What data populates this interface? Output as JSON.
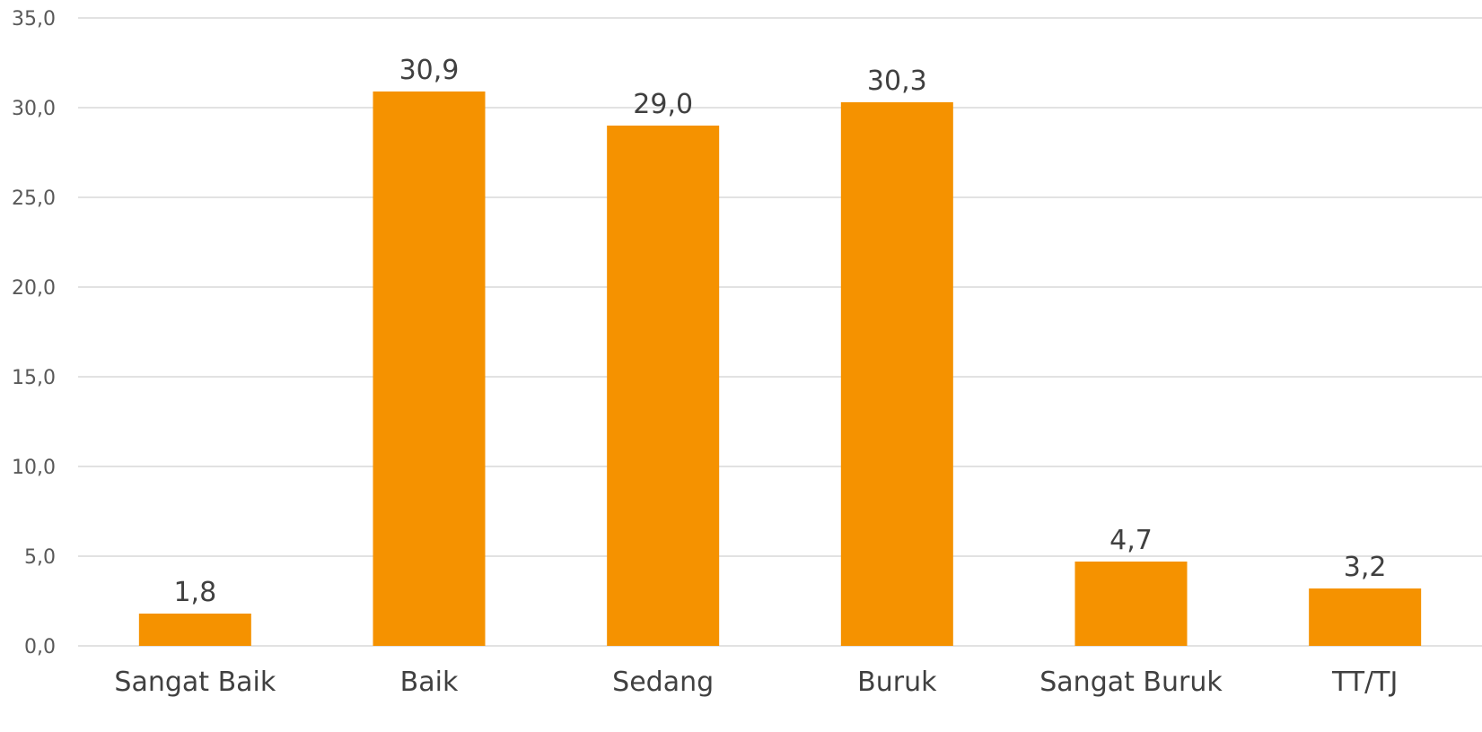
{
  "chart_data": {
    "type": "bar",
    "title": "",
    "xlabel": "",
    "ylabel": "",
    "categories": [
      "Sangat Baik",
      "Baik",
      "Sedang",
      "Buruk",
      "Sangat Buruk",
      "TT/TJ"
    ],
    "values": [
      1.8,
      30.9,
      29.0,
      30.3,
      4.7,
      3.2
    ],
    "data_labels": [
      "1,8",
      "30,9",
      "29,0",
      "30,3",
      "4,7",
      "3,2"
    ],
    "ylim": [
      0,
      35
    ],
    "y_ticks": [
      0,
      5,
      10,
      15,
      20,
      25,
      30,
      35
    ],
    "y_tick_labels": [
      "0,0",
      "5,0",
      "10,0",
      "15,0",
      "20,0",
      "25,0",
      "30,0",
      "35,0"
    ],
    "grid": true,
    "legend": "none",
    "bar_color": "#f59200",
    "grid_color": "#d9d9d9"
  }
}
